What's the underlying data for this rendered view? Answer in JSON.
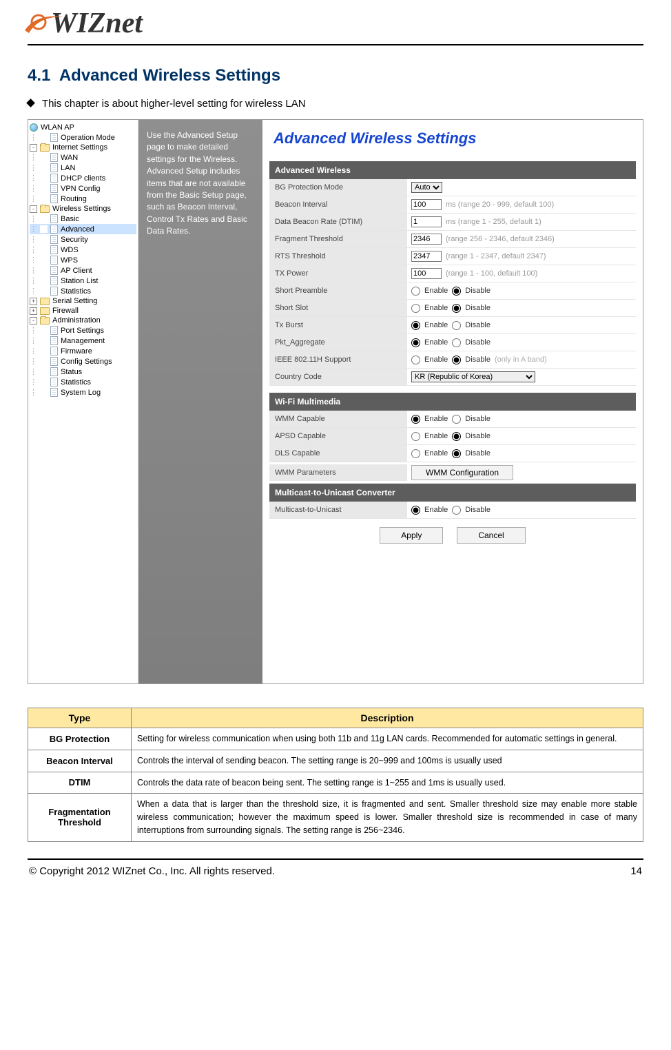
{
  "logo_text": "WIZnet",
  "section_number": "4.1",
  "section_title": "Advanced Wireless Settings",
  "intro_text": "This chapter is about higher-level setting for wireless LAN",
  "tree": {
    "root": "WLAN AP",
    "items": [
      {
        "depth": 1,
        "icon": "page",
        "label": "Operation Mode"
      },
      {
        "depth": 0,
        "exp": "-",
        "icon": "folder-open",
        "label": "Internet Settings"
      },
      {
        "depth": 1,
        "icon": "page",
        "label": "WAN"
      },
      {
        "depth": 1,
        "icon": "page",
        "label": "LAN"
      },
      {
        "depth": 1,
        "icon": "page",
        "label": "DHCP clients"
      },
      {
        "depth": 1,
        "icon": "page",
        "label": "VPN Config"
      },
      {
        "depth": 1,
        "icon": "page",
        "label": "Routing"
      },
      {
        "depth": 0,
        "exp": "-",
        "icon": "folder-open",
        "label": "Wireless Settings"
      },
      {
        "depth": 1,
        "icon": "page",
        "label": "Basic"
      },
      {
        "depth": 1,
        "icon": "page",
        "label": "Advanced",
        "selected": true
      },
      {
        "depth": 1,
        "icon": "page",
        "label": "Security"
      },
      {
        "depth": 1,
        "icon": "page",
        "label": "WDS"
      },
      {
        "depth": 1,
        "icon": "page",
        "label": "WPS"
      },
      {
        "depth": 1,
        "icon": "page",
        "label": "AP Client"
      },
      {
        "depth": 1,
        "icon": "page",
        "label": "Station List"
      },
      {
        "depth": 1,
        "icon": "page",
        "label": "Statistics"
      },
      {
        "depth": 0,
        "exp": "+",
        "icon": "folder",
        "label": "Serial Setting"
      },
      {
        "depth": 0,
        "exp": "+",
        "icon": "folder",
        "label": "Firewall"
      },
      {
        "depth": 0,
        "exp": "-",
        "icon": "folder-open",
        "label": "Administration"
      },
      {
        "depth": 1,
        "icon": "page",
        "label": "Port Settings"
      },
      {
        "depth": 1,
        "icon": "page",
        "label": "Management"
      },
      {
        "depth": 1,
        "icon": "page",
        "label": "Firmware"
      },
      {
        "depth": 1,
        "icon": "page",
        "label": "Config Settings"
      },
      {
        "depth": 1,
        "icon": "page",
        "label": "Status"
      },
      {
        "depth": 1,
        "icon": "page",
        "label": "Statistics"
      },
      {
        "depth": 1,
        "icon": "page",
        "label": "System Log"
      }
    ]
  },
  "help_text": "Use the Advanced Setup page to make detailed settings for the Wireless. Advanced Setup includes items that are not available from the Basic Setup page, such as Beacon Interval, Control Tx Rates and Basic Data Rates.",
  "panel_title": "Advanced Wireless Settings",
  "groups": {
    "adv": "Advanced Wireless",
    "wmm": "Wi-Fi Multimedia",
    "mc": "Multicast-to-Unicast Converter"
  },
  "radio_labels": {
    "enable": "Enable",
    "disable": "Disable"
  },
  "rows": {
    "bg": {
      "label": "BG Protection Mode",
      "value": "Auto"
    },
    "beacon": {
      "label": "Beacon Interval",
      "value": "100",
      "hint": "ms (range 20 - 999, default 100)"
    },
    "dtim": {
      "label": "Data Beacon Rate (DTIM)",
      "value": "1",
      "hint": "ms (range 1 - 255, default 1)"
    },
    "frag": {
      "label": "Fragment Threshold",
      "value": "2346",
      "hint": "(range 256 - 2346, default 2346)"
    },
    "rts": {
      "label": "RTS Threshold",
      "value": "2347",
      "hint": "(range 1 - 2347, default 2347)"
    },
    "txp": {
      "label": "TX Power",
      "value": "100",
      "hint": "(range 1 - 100, default 100)"
    },
    "spreamble": {
      "label": "Short Preamble",
      "sel": "disable"
    },
    "sslot": {
      "label": "Short Slot",
      "sel": "disable"
    },
    "txburst": {
      "label": "Tx Burst",
      "sel": "enable"
    },
    "pkt": {
      "label": "Pkt_Aggregate",
      "sel": "enable"
    },
    "ieee": {
      "label": "IEEE 802.11H Support",
      "sel": "disable",
      "extra": "(only in A band)"
    },
    "country": {
      "label": "Country Code",
      "value": "KR (Republic of Korea)"
    },
    "wmmcap": {
      "label": "WMM Capable",
      "sel": "enable"
    },
    "apsd": {
      "label": "APSD Capable",
      "sel": "disable"
    },
    "dls": {
      "label": "DLS Capable",
      "sel": "disable"
    },
    "wmmparam": {
      "label": "WMM Parameters",
      "btn": "WMM Configuration"
    },
    "m2u": {
      "label": "Multicast-to-Unicast",
      "sel": "enable"
    }
  },
  "buttons": {
    "apply": "Apply",
    "cancel": "Cancel"
  },
  "table": {
    "head_type": "Type",
    "head_desc": "Description",
    "rows": [
      {
        "type": "BG Protection",
        "desc": "Setting for wireless communication when using both 11b and 11g LAN cards. Recommended for automatic settings in general."
      },
      {
        "type": "Beacon Interval",
        "desc": "Controls the interval of sending beacon. The setting range is 20~999 and 100ms is usually used"
      },
      {
        "type": "DTIM",
        "desc": "Controls the data rate of beacon being sent. The setting range is 1~255 and 1ms is usually used."
      },
      {
        "type": "Fragmentation Threshold",
        "desc": "When a data that is larger than the threshold size, it is fragmented and sent. Smaller threshold size may enable more stable wireless communication; however the maximum speed is lower. Smaller threshold size is recommended in case of many interruptions from surrounding signals. The setting range is 256~2346."
      }
    ]
  },
  "footer": {
    "copyright": "© Copyright 2012 WIZnet Co., Inc. All rights reserved.",
    "page": "14"
  }
}
